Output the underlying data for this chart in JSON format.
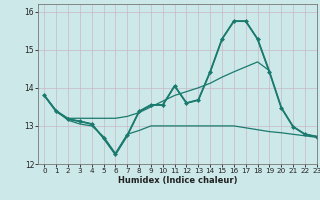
{
  "title": "",
  "xlabel": "Humidex (Indice chaleur)",
  "xlim": [
    -0.5,
    23
  ],
  "ylim": [
    12,
    16.2
  ],
  "yticks": [
    12,
    13,
    14,
    15,
    16
  ],
  "xticks": [
    0,
    1,
    2,
    3,
    4,
    5,
    6,
    7,
    8,
    9,
    10,
    11,
    12,
    13,
    14,
    15,
    16,
    17,
    18,
    19,
    20,
    21,
    22,
    23
  ],
  "bg_color": "#cce8e8",
  "grid_color": "#c8b8c8",
  "line_color": "#1a7a6e",
  "lines": [
    {
      "x": [
        0,
        1,
        2,
        3,
        4,
        5,
        6,
        7,
        8,
        9,
        10,
        11,
        12,
        13,
        14,
        15,
        16,
        17,
        18,
        19,
        20,
        21,
        22,
        23
      ],
      "y": [
        13.8,
        13.4,
        13.15,
        13.05,
        13.0,
        12.72,
        12.28,
        12.78,
        12.88,
        13.0,
        13.0,
        13.0,
        13.0,
        13.0,
        13.0,
        13.0,
        13.0,
        12.95,
        12.9,
        12.85,
        12.82,
        12.78,
        12.74,
        12.7
      ],
      "marker": null,
      "lw": 0.9
    },
    {
      "x": [
        0,
        1,
        2,
        3,
        4,
        5,
        6,
        7,
        8,
        9,
        10,
        11,
        12,
        13,
        14,
        15,
        16,
        17,
        18,
        19
      ],
      "y": [
        13.8,
        13.4,
        13.2,
        13.2,
        13.2,
        13.2,
        13.2,
        13.25,
        13.35,
        13.5,
        13.65,
        13.8,
        13.9,
        14.0,
        14.12,
        14.28,
        14.42,
        14.55,
        14.68,
        14.45
      ],
      "marker": null,
      "lw": 0.9
    },
    {
      "x": [
        0,
        1,
        2,
        3,
        4,
        5,
        6,
        7,
        8,
        9,
        10,
        11,
        12,
        13,
        14,
        15,
        16,
        17,
        18,
        19,
        20,
        21,
        22,
        23
      ],
      "y": [
        13.8,
        13.38,
        13.18,
        13.12,
        13.05,
        12.68,
        12.25,
        12.75,
        13.38,
        13.55,
        13.55,
        14.05,
        13.6,
        13.68,
        14.42,
        15.28,
        15.75,
        15.75,
        15.28,
        14.42,
        13.48,
        12.98,
        12.78,
        12.72
      ],
      "marker": "D",
      "lw": 0.9
    },
    {
      "x": [
        0,
        1,
        2,
        3,
        4,
        5,
        6,
        7,
        8,
        9,
        10,
        11,
        12,
        13,
        14,
        15,
        16,
        17,
        18,
        19,
        20,
        21,
        22,
        23
      ],
      "y": [
        13.8,
        13.38,
        13.18,
        13.12,
        13.05,
        12.68,
        12.25,
        12.75,
        13.38,
        13.55,
        13.55,
        14.05,
        13.6,
        13.68,
        14.42,
        15.28,
        15.75,
        15.75,
        15.28,
        14.42,
        13.48,
        12.98,
        12.78,
        12.72
      ],
      "marker": null,
      "lw": 1.3
    }
  ]
}
